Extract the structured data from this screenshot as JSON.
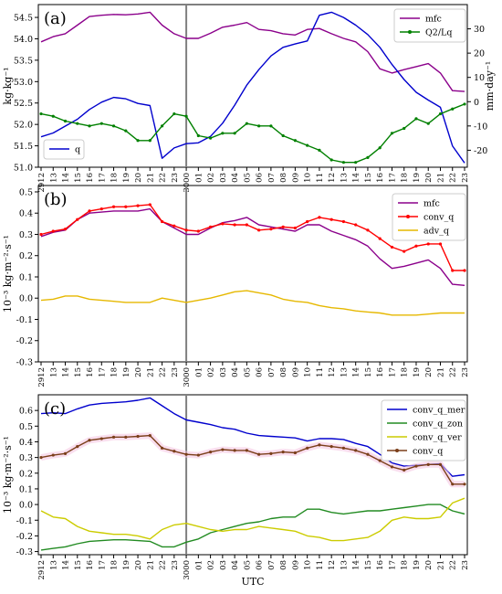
{
  "figure": {
    "xlabel": "UTC",
    "x_tick_labels": [
      "2912",
      "13",
      "14",
      "15",
      "16",
      "17",
      "18",
      "19",
      "20",
      "21",
      "22",
      "23",
      "3000",
      "01",
      "02",
      "03",
      "04",
      "05",
      "06",
      "07",
      "08",
      "09",
      "10",
      "11",
      "12",
      "13",
      "14",
      "15",
      "16",
      "17",
      "18",
      "19",
      "20",
      "21",
      "22",
      "23"
    ],
    "divider_index": 12
  },
  "chart_data": [
    {
      "type": "line",
      "panel_label": "(a)",
      "ylabel_left": "kg·kg⁻¹",
      "ylabel_right": "mm·day⁻¹",
      "left_ylim": [
        51.0,
        54.8
      ],
      "left_ticks": [
        "51.0",
        "51.5",
        "52.0",
        "52.5",
        "53.0",
        "53.5",
        "54.0",
        "54.5"
      ],
      "right_ylim": [
        -27,
        40
      ],
      "right_ticks": [
        "-20",
        "-10",
        "0",
        "10",
        "20",
        "30"
      ],
      "legend_top_right": [
        "mfc",
        "Q2/Lq"
      ],
      "legend_bottom_left": [
        "q"
      ],
      "series": [
        {
          "name": "mfc",
          "axis": "left",
          "color": "#8B008B",
          "marker": "none",
          "values": [
            53.93,
            54.05,
            54.12,
            54.32,
            54.52,
            54.55,
            54.57,
            54.56,
            54.58,
            54.62,
            54.32,
            54.12,
            54.01,
            54.01,
            54.13,
            54.27,
            54.32,
            54.38,
            54.22,
            54.19,
            54.12,
            54.09,
            54.22,
            54.24,
            54.12,
            54.01,
            53.93,
            53.7,
            53.3,
            53.2,
            53.28,
            53.35,
            53.42,
            53.2,
            52.79,
            52.77
          ]
        },
        {
          "name": "q",
          "axis": "left",
          "color": "#0000CD",
          "marker": "none",
          "values": [
            51.71,
            51.8,
            51.96,
            52.12,
            52.35,
            52.52,
            52.63,
            52.6,
            52.49,
            52.44,
            51.21,
            51.45,
            51.55,
            51.57,
            51.72,
            52.03,
            52.45,
            52.92,
            53.28,
            53.6,
            53.8,
            53.88,
            53.95,
            54.55,
            54.62,
            54.5,
            54.32,
            54.1,
            53.8,
            53.4,
            53.05,
            52.75,
            52.57,
            52.4,
            51.5,
            51.1
          ]
        },
        {
          "name": "Q2/Lq",
          "axis": "right",
          "color": "#008000",
          "marker": "dot",
          "values": [
            -5,
            -6,
            -8,
            -9,
            -10,
            -9,
            -10,
            -12,
            -16,
            -16,
            -10,
            -5,
            -6,
            -14,
            -15,
            -13,
            -13,
            -9,
            -10,
            -10,
            -14,
            -16,
            -18,
            -20,
            -24,
            -25,
            -25,
            -23,
            -19,
            -13,
            -11,
            -7,
            -9,
            -5,
            -3,
            -1
          ]
        }
      ]
    },
    {
      "type": "line",
      "panel_label": "(b)",
      "ylabel_left": "10⁻³ kg·m⁻²·s⁻¹",
      "left_ylim": [
        -0.3,
        0.53
      ],
      "left_ticks": [
        "-0.3",
        "-0.2",
        "-0.1",
        "0.0",
        "0.1",
        "0.2",
        "0.3",
        "0.4",
        "0.5"
      ],
      "legend": [
        "mfc",
        "conv_q",
        "adv_q"
      ],
      "series": [
        {
          "name": "mfc",
          "color": "#8B008B",
          "marker": "none",
          "values": [
            0.29,
            0.31,
            0.32,
            0.37,
            0.4,
            0.405,
            0.41,
            0.41,
            0.41,
            0.42,
            0.36,
            0.33,
            0.3,
            0.3,
            0.33,
            0.355,
            0.365,
            0.38,
            0.345,
            0.335,
            0.325,
            0.315,
            0.345,
            0.345,
            0.315,
            0.295,
            0.275,
            0.245,
            0.185,
            0.14,
            0.15,
            0.165,
            0.18,
            0.14,
            0.065,
            0.06
          ]
        },
        {
          "name": "conv_q",
          "color": "#FF0000",
          "marker": "dot",
          "values": [
            0.3,
            0.315,
            0.325,
            0.37,
            0.41,
            0.42,
            0.43,
            0.43,
            0.435,
            0.44,
            0.36,
            0.34,
            0.32,
            0.315,
            0.335,
            0.35,
            0.345,
            0.345,
            0.32,
            0.325,
            0.335,
            0.33,
            0.36,
            0.38,
            0.37,
            0.36,
            0.345,
            0.32,
            0.28,
            0.24,
            0.22,
            0.245,
            0.255,
            0.255,
            0.13,
            0.13
          ]
        },
        {
          "name": "adv_q",
          "color": "#E6B800",
          "marker": "none",
          "values": [
            -0.01,
            -0.005,
            0.01,
            0.01,
            -0.005,
            -0.01,
            -0.015,
            -0.02,
            -0.02,
            -0.02,
            0.0,
            -0.01,
            -0.02,
            -0.01,
            0.0,
            0.015,
            0.03,
            0.035,
            0.025,
            0.015,
            -0.005,
            -0.015,
            -0.02,
            -0.035,
            -0.045,
            -0.05,
            -0.06,
            -0.065,
            -0.07,
            -0.08,
            -0.08,
            -0.08,
            -0.075,
            -0.07,
            -0.07,
            -0.07
          ]
        }
      ]
    },
    {
      "type": "line",
      "panel_label": "(c)",
      "ylabel_left": "10⁻³ kg·m⁻²·s⁻¹",
      "left_ylim": [
        -0.32,
        0.7
      ],
      "left_ticks": [
        "-0.3",
        "-0.2",
        "-0.1",
        "0.0",
        "0.1",
        "0.2",
        "0.3",
        "0.4",
        "0.5",
        "0.6"
      ],
      "legend": [
        "conv_q_mer",
        "conv_q_zon",
        "conv_q_ver",
        "conv_q"
      ],
      "series": [
        {
          "name": "conv_q_mer",
          "color": "#0000CD",
          "marker": "none",
          "values": [
            0.58,
            0.585,
            0.58,
            0.61,
            0.635,
            0.645,
            0.65,
            0.655,
            0.665,
            0.68,
            0.63,
            0.58,
            0.54,
            0.525,
            0.51,
            0.49,
            0.48,
            0.455,
            0.44,
            0.435,
            0.43,
            0.425,
            0.405,
            0.42,
            0.42,
            0.415,
            0.39,
            0.37,
            0.32,
            0.265,
            0.245,
            0.25,
            0.255,
            0.26,
            0.18,
            0.19
          ]
        },
        {
          "name": "conv_q_zon",
          "color": "#228B22",
          "marker": "none",
          "values": [
            -0.29,
            -0.28,
            -0.27,
            -0.25,
            -0.235,
            -0.23,
            -0.225,
            -0.225,
            -0.23,
            -0.235,
            -0.27,
            -0.27,
            -0.24,
            -0.22,
            -0.18,
            -0.16,
            -0.14,
            -0.12,
            -0.11,
            -0.09,
            -0.08,
            -0.08,
            -0.03,
            -0.03,
            -0.05,
            -0.06,
            -0.05,
            -0.04,
            -0.04,
            -0.03,
            -0.02,
            -0.01,
            0.0,
            0.0,
            -0.04,
            -0.06
          ]
        },
        {
          "name": "conv_q_ver",
          "color": "#CCCC00",
          "marker": "none",
          "values": [
            -0.04,
            -0.08,
            -0.09,
            -0.14,
            -0.17,
            -0.18,
            -0.19,
            -0.19,
            -0.2,
            -0.22,
            -0.16,
            -0.13,
            -0.12,
            -0.14,
            -0.16,
            -0.17,
            -0.16,
            -0.16,
            -0.14,
            -0.15,
            -0.16,
            -0.17,
            -0.2,
            -0.21,
            -0.23,
            -0.23,
            -0.22,
            -0.21,
            -0.17,
            -0.1,
            -0.08,
            -0.09,
            -0.09,
            -0.08,
            0.01,
            0.04
          ]
        },
        {
          "name": "conv_q",
          "color": "#7B3F1A",
          "marker": "dot",
          "values": [
            0.3,
            0.315,
            0.325,
            0.37,
            0.41,
            0.42,
            0.43,
            0.43,
            0.435,
            0.44,
            0.36,
            0.34,
            0.32,
            0.315,
            0.335,
            0.35,
            0.345,
            0.345,
            0.32,
            0.325,
            0.335,
            0.33,
            0.36,
            0.38,
            0.37,
            0.36,
            0.345,
            0.32,
            0.28,
            0.24,
            0.22,
            0.245,
            0.255,
            0.255,
            0.13,
            0.13
          ]
        }
      ]
    }
  ]
}
